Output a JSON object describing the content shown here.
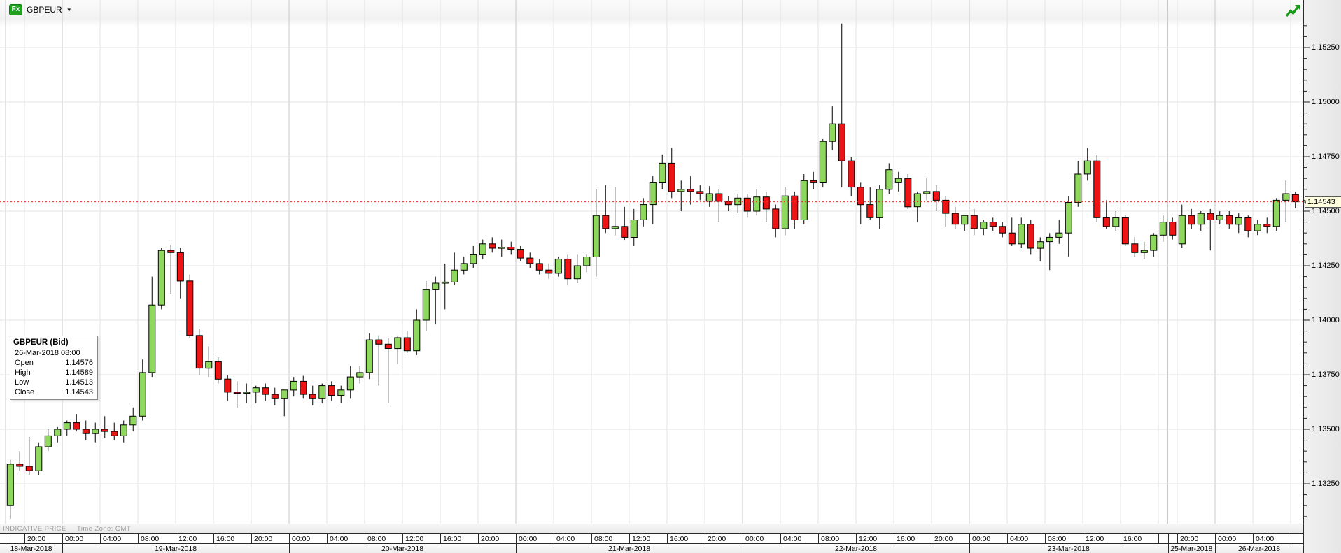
{
  "toolbar": {
    "symbol_badge": "Fx",
    "symbol": "GBPEUR",
    "dropdown_arrow": "▼"
  },
  "tooltip": {
    "title": "GBPEUR (Bid)",
    "datetime": "26-Mar-2018 08:00",
    "rows": [
      {
        "label": "Open",
        "value": "1.14576"
      },
      {
        "label": "High",
        "value": "1.14589"
      },
      {
        "label": "Low",
        "value": "1.14513"
      },
      {
        "label": "Close",
        "value": "1.14543"
      }
    ]
  },
  "footer": {
    "indicative": "INDICATIVE PRICE",
    "timezone": "Time Zone: GMT"
  },
  "colors": {
    "up": "#8fd85e",
    "down": "#ec1414",
    "wick": "#000000",
    "grid": "#e3e3e3",
    "grid_day": "#c9c9c9",
    "current_line": "#ff2020",
    "badge_green": "#1fa11f",
    "realtime_green": "#149914",
    "price_tag_bg": "#ffffdf"
  },
  "chart_data": {
    "type": "candlestick",
    "symbol": "GBPEUR (Bid)",
    "interval": "1 hour",
    "timezone": "GMT",
    "current_price": 1.14543,
    "current_price_label": "1.14543",
    "price_labels": [
      "1.15250",
      "1.15000",
      "1.14750",
      "1.14500",
      "1.14250",
      "1.14000",
      "1.13750",
      "1.13500",
      "1.13250"
    ],
    "price_axis": {
      "major_step": 0.0025,
      "minor_step": 0.0005,
      "visible_min": 1.1307,
      "visible_max": 1.1539
    },
    "time_label_hours": [
      0,
      4,
      8,
      12,
      16,
      20
    ],
    "sessions": [
      {
        "date": "18-Mar-2018",
        "start": "18:00",
        "ohlc": [
          [
            1.1315,
            1.1336,
            1.1309,
            1.1334
          ],
          [
            1.1334,
            1.134,
            1.1331,
            1.1333
          ],
          [
            1.1333,
            1.13465,
            1.1329,
            1.1331
          ],
          [
            1.1331,
            1.1344,
            1.1329,
            1.1342
          ],
          [
            1.1342,
            1.135,
            1.134,
            1.1347
          ],
          [
            1.1347,
            1.1351,
            1.1344,
            1.135
          ]
        ]
      },
      {
        "date": "19-Mar-2018",
        "start": "00:00",
        "ohlc": [
          [
            1.135,
            1.1354,
            1.1347,
            1.1353
          ],
          [
            1.1353,
            1.1357,
            1.1349,
            1.135
          ],
          [
            1.135,
            1.1354,
            1.1345,
            1.1348
          ],
          [
            1.1348,
            1.1353,
            1.1344,
            1.135
          ],
          [
            1.135,
            1.1356,
            1.1346,
            1.1349
          ],
          [
            1.1349,
            1.1353,
            1.1345,
            1.1347
          ],
          [
            1.1347,
            1.1354,
            1.1344,
            1.1352
          ],
          [
            1.1352,
            1.136,
            1.1349,
            1.1356
          ],
          [
            1.1356,
            1.1382,
            1.1354,
            1.1376
          ],
          [
            1.1376,
            1.142,
            1.1374,
            1.1407
          ],
          [
            1.1407,
            1.1433,
            1.1405,
            1.1432
          ],
          [
            1.1432,
            1.14345,
            1.1412,
            1.1431
          ],
          [
            1.1431,
            1.1433,
            1.141,
            1.1418
          ],
          [
            1.1418,
            1.1421,
            1.1392,
            1.1393
          ],
          [
            1.1393,
            1.1396,
            1.1375,
            1.1378
          ],
          [
            1.1378,
            1.1388,
            1.1374,
            1.1381
          ],
          [
            1.1381,
            1.1383,
            1.1371,
            1.1373
          ],
          [
            1.1373,
            1.1375,
            1.1363,
            1.1367
          ],
          [
            1.1367,
            1.1372,
            1.136,
            1.13665
          ],
          [
            1.13665,
            1.1371,
            1.1362,
            1.1367
          ],
          [
            1.1367,
            1.137,
            1.1362,
            1.1369
          ],
          [
            1.1369,
            1.1371,
            1.1363,
            1.1366
          ],
          [
            1.1366,
            1.1369,
            1.1361,
            1.1364
          ],
          [
            1.1364,
            1.1368,
            1.1356,
            1.1368
          ]
        ]
      },
      {
        "date": "20-Mar-2018",
        "start": "00:00",
        "ohlc": [
          [
            1.1368,
            1.1374,
            1.1365,
            1.1372
          ],
          [
            1.1372,
            1.13745,
            1.1364,
            1.1366
          ],
          [
            1.1366,
            1.137,
            1.1361,
            1.1364
          ],
          [
            1.1364,
            1.1371,
            1.1362,
            1.137
          ],
          [
            1.137,
            1.1372,
            1.1363,
            1.13655
          ],
          [
            1.13655,
            1.137,
            1.1362,
            1.1368
          ],
          [
            1.1368,
            1.1379,
            1.1364,
            1.1374
          ],
          [
            1.1374,
            1.1379,
            1.1371,
            1.1376
          ],
          [
            1.1376,
            1.1394,
            1.1373,
            1.1391
          ],
          [
            1.1391,
            1.1393,
            1.137,
            1.1389
          ],
          [
            1.1389,
            1.1392,
            1.1362,
            1.1387
          ],
          [
            1.1387,
            1.1393,
            1.138,
            1.1392
          ],
          [
            1.1392,
            1.1395,
            1.1385,
            1.1386
          ],
          [
            1.1386,
            1.1405,
            1.1384,
            1.14
          ],
          [
            1.14,
            1.1418,
            1.1395,
            1.1414
          ],
          [
            1.1414,
            1.142,
            1.1398,
            1.1417
          ],
          [
            1.1417,
            1.1426,
            1.1405,
            1.14175
          ],
          [
            1.14175,
            1.1431,
            1.1416,
            1.1423
          ],
          [
            1.1423,
            1.1429,
            1.1421,
            1.1426
          ],
          [
            1.1426,
            1.1434,
            1.1424,
            1.143
          ],
          [
            1.143,
            1.1437,
            1.1428,
            1.1435
          ],
          [
            1.1435,
            1.1438,
            1.1431,
            1.1433
          ],
          [
            1.1433,
            1.1437,
            1.1429,
            1.14335
          ],
          [
            1.14335,
            1.1436,
            1.143,
            1.14325
          ]
        ]
      },
      {
        "date": "21-Mar-2018",
        "start": "00:00",
        "ohlc": [
          [
            1.14325,
            1.1434,
            1.1427,
            1.14285
          ],
          [
            1.14285,
            1.1431,
            1.1424,
            1.1426
          ],
          [
            1.1426,
            1.1428,
            1.1421,
            1.1423
          ],
          [
            1.1423,
            1.1426,
            1.1419,
            1.14215
          ],
          [
            1.14215,
            1.1429,
            1.142,
            1.1428
          ],
          [
            1.1428,
            1.143,
            1.1416,
            1.1419
          ],
          [
            1.1419,
            1.143,
            1.1417,
            1.1425
          ],
          [
            1.1425,
            1.143,
            1.1422,
            1.1429
          ],
          [
            1.1429,
            1.146,
            1.142,
            1.1448
          ],
          [
            1.1448,
            1.1462,
            1.144,
            1.1442
          ],
          [
            1.1442,
            1.1461,
            1.1439,
            1.1443
          ],
          [
            1.1443,
            1.1452,
            1.14365,
            1.1438
          ],
          [
            1.1438,
            1.1451,
            1.1434,
            1.1446
          ],
          [
            1.1446,
            1.1456,
            1.1443,
            1.1453
          ],
          [
            1.1453,
            1.1466,
            1.1444,
            1.1463
          ],
          [
            1.1463,
            1.1476,
            1.146,
            1.1472
          ],
          [
            1.1472,
            1.1479,
            1.1456,
            1.1459
          ],
          [
            1.1459,
            1.1464,
            1.145,
            1.146
          ],
          [
            1.146,
            1.1466,
            1.1453,
            1.1459
          ],
          [
            1.1459,
            1.1462,
            1.1455,
            1.1458
          ],
          [
            1.14545,
            1.14615,
            1.1452,
            1.1458
          ],
          [
            1.1458,
            1.146,
            1.1445,
            1.14545
          ],
          [
            1.14545,
            1.1457,
            1.145,
            1.1453
          ],
          [
            1.1453,
            1.1458,
            1.1449,
            1.1456
          ]
        ]
      },
      {
        "date": "22-Mar-2018",
        "start": "00:00",
        "ohlc": [
          [
            1.1456,
            1.1458,
            1.1447,
            1.145
          ],
          [
            1.145,
            1.146,
            1.1448,
            1.14565
          ],
          [
            1.14565,
            1.1459,
            1.1445,
            1.1451
          ],
          [
            1.1451,
            1.1453,
            1.1438,
            1.1442
          ],
          [
            1.1442,
            1.1461,
            1.1439,
            1.1457
          ],
          [
            1.1457,
            1.1459,
            1.1442,
            1.1446
          ],
          [
            1.1446,
            1.1467,
            1.1444,
            1.1464
          ],
          [
            1.1464,
            1.1468,
            1.146,
            1.1463
          ],
          [
            1.1463,
            1.1483,
            1.1461,
            1.1482
          ],
          [
            1.1482,
            1.1498,
            1.1478,
            1.149
          ],
          [
            1.149,
            1.1536,
            1.1461,
            1.1473
          ],
          [
            1.1473,
            1.1475,
            1.1457,
            1.1461
          ],
          [
            1.1461,
            1.1463,
            1.1444,
            1.1453
          ],
          [
            1.1453,
            1.1461,
            1.1446,
            1.1447
          ],
          [
            1.1447,
            1.1462,
            1.1442,
            1.146
          ],
          [
            1.146,
            1.1472,
            1.1458,
            1.1469
          ],
          [
            1.1463,
            1.1468,
            1.1459,
            1.1465
          ],
          [
            1.1465,
            1.1467,
            1.1451,
            1.1452
          ],
          [
            1.1452,
            1.1459,
            1.1445,
            1.1458
          ],
          [
            1.1458,
            1.1465,
            1.1455,
            1.1459
          ],
          [
            1.1459,
            1.1462,
            1.145,
            1.1455
          ],
          [
            1.1455,
            1.1457,
            1.1443,
            1.1449
          ],
          [
            1.1449,
            1.1452,
            1.1442,
            1.1444
          ],
          [
            1.1444,
            1.1448,
            1.1441,
            1.1448
          ]
        ]
      },
      {
        "date": "23-Mar-2018",
        "start": "00:00",
        "ohlc": [
          [
            1.1448,
            1.1451,
            1.1439,
            1.1442
          ],
          [
            1.1442,
            1.1446,
            1.1439,
            1.1445
          ],
          [
            1.1445,
            1.1447,
            1.1441,
            1.1443
          ],
          [
            1.1443,
            1.1445,
            1.1438,
            1.144
          ],
          [
            1.144,
            1.1447,
            1.1434,
            1.1435
          ],
          [
            1.1435,
            1.1447,
            1.1433,
            1.1444
          ],
          [
            1.1444,
            1.1446,
            1.143,
            1.1433
          ],
          [
            1.1433,
            1.1438,
            1.1427,
            1.1436
          ],
          [
            1.1436,
            1.144,
            1.1423,
            1.1438
          ],
          [
            1.1438,
            1.1446,
            1.1435,
            1.144
          ],
          [
            1.144,
            1.1457,
            1.1429,
            1.1454
          ],
          [
            1.1454,
            1.1473,
            1.1452,
            1.1467
          ],
          [
            1.1467,
            1.1479,
            1.1464,
            1.1473
          ],
          [
            1.1473,
            1.1476,
            1.1445,
            1.1447
          ],
          [
            1.1447,
            1.1455,
            1.1442,
            1.1443
          ],
          [
            1.1443,
            1.145,
            1.1441,
            1.1447
          ],
          [
            1.1447,
            1.1448,
            1.1434,
            1.1435
          ],
          [
            1.1435,
            1.1438,
            1.1429,
            1.1431
          ],
          [
            1.1431,
            1.1436,
            1.1428,
            1.1432
          ],
          [
            1.1432,
            1.144,
            1.1429,
            1.1439
          ],
          [
            1.1439,
            1.1448,
            1.1436,
            1.1445
          ]
        ]
      },
      {
        "date": "25-Mar-2018",
        "start": "19:00",
        "ohlc": [
          [
            1.1445,
            1.1447,
            1.1437,
            1.1439
          ],
          [
            1.1435,
            1.1453,
            1.1433,
            1.1448
          ],
          [
            1.1448,
            1.1451,
            1.1442,
            1.1444
          ],
          [
            1.1444,
            1.145,
            1.1441,
            1.1449
          ],
          [
            1.1449,
            1.1451,
            1.1432,
            1.1446
          ]
        ]
      },
      {
        "date": "26-Mar-2018",
        "start": "00:00",
        "ohlc": [
          [
            1.1446,
            1.145,
            1.1444,
            1.1448
          ],
          [
            1.1448,
            1.145,
            1.1442,
            1.1444
          ],
          [
            1.1444,
            1.1449,
            1.144,
            1.1447
          ],
          [
            1.1447,
            1.1448,
            1.1438,
            1.1441
          ],
          [
            1.1441,
            1.1446,
            1.1439,
            1.1444
          ],
          [
            1.1444,
            1.1447,
            1.144,
            1.1443
          ],
          [
            1.1443,
            1.1456,
            1.1441,
            1.1455
          ],
          [
            1.1455,
            1.1464,
            1.1445,
            1.1458
          ],
          [
            1.14576,
            1.14589,
            1.14513,
            1.14543
          ]
        ]
      }
    ]
  }
}
